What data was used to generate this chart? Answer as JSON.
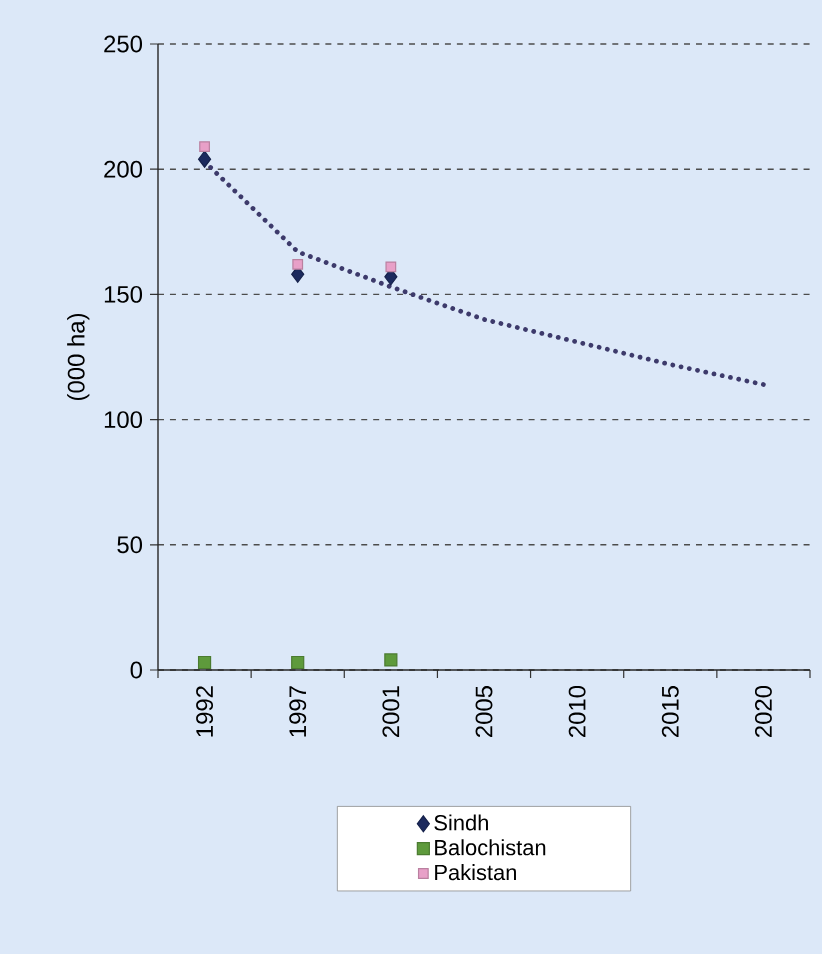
{
  "chart_data": {
    "type": "scatter",
    "ylabel": "(000 ha)",
    "categories": [
      "1992",
      "1997",
      "2001",
      "2005",
      "2010",
      "2015",
      "2020"
    ],
    "series": [
      {
        "name": "Sindh",
        "color": "#1c2a5e",
        "marker": "diamond",
        "values": [
          204,
          158,
          157,
          null,
          null,
          null,
          null
        ]
      },
      {
        "name": "Balochistan",
        "color": "#5e9a3c",
        "marker": "square",
        "values": [
          3,
          3,
          4,
          null,
          null,
          null,
          null
        ]
      },
      {
        "name": "Pakistan",
        "color": "#e8a0c8",
        "marker": "square",
        "values": [
          209,
          162,
          161,
          null,
          null,
          null,
          null
        ]
      },
      {
        "type": "line",
        "color": "#3d3a6b",
        "line_style": "dotted",
        "marker": "none",
        "values": [
          203,
          167,
          153,
          140,
          131,
          122,
          114
        ]
      }
    ],
    "ylim": [
      0,
      250
    ],
    "yticks": [
      0,
      50,
      100,
      150,
      200,
      250
    ],
    "grid": "y",
    "legend": "bottom"
  }
}
